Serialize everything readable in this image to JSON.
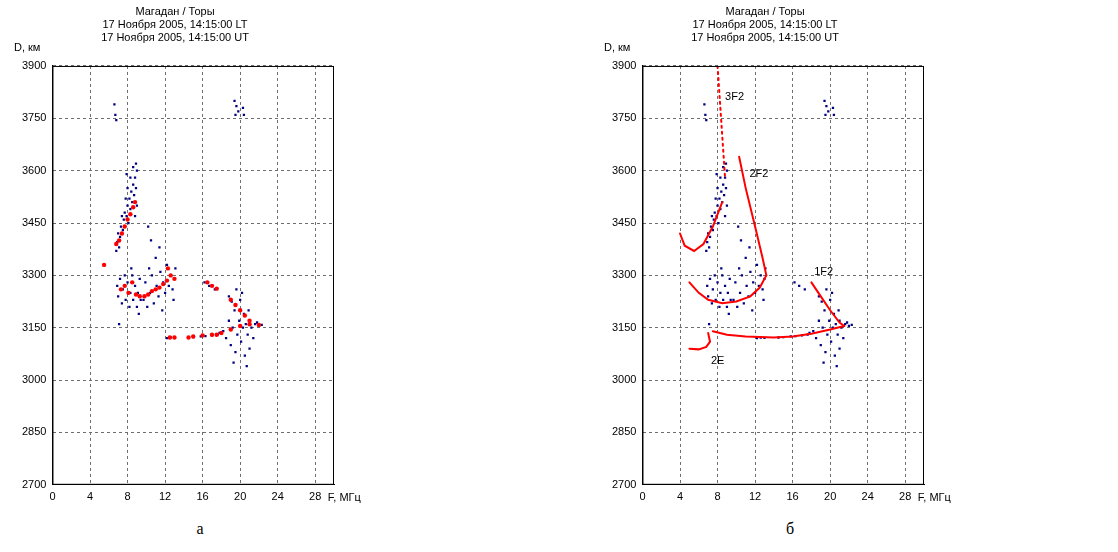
{
  "chart_data": [
    {
      "type": "scatter",
      "title": [
        "Магадан / Торы",
        "17 Ноября 2005, 14:15:00 LT",
        "17 Ноября 2005, 14:15:00 UT"
      ],
      "x_label": "F, МГц",
      "y_label": "D, км",
      "panel_label": "а",
      "xlim": [
        0,
        30
      ],
      "xticks": [
        0,
        4,
        8,
        12,
        16,
        20,
        24,
        28
      ],
      "ylim": [
        2700,
        3900
      ],
      "yticks": [
        2700,
        2850,
        3000,
        3150,
        3300,
        3450,
        3600,
        3750,
        3900
      ],
      "grid": true,
      "series": [
        {
          "type": "scatter",
          "color": "#000080",
          "marker": "square",
          "x": [
            6.9,
            7.0,
            7.2,
            7.3,
            7.5,
            7.6,
            7.7,
            7.9,
            8.0,
            8.1,
            8.2,
            8.3,
            8.4,
            8.5,
            8.6,
            8.7,
            8.8,
            8.9,
            9.0,
            8.6,
            8.3,
            8.0,
            7.8,
            7.4,
            7.1,
            6.8,
            9.0,
            8.8,
            8.9,
            7.9,
            6.6,
            6.7,
            6.8,
            19.4,
            19.6,
            19.8,
            20.3,
            20.4,
            19.5
          ],
          "values": [
            3395,
            3420,
            3410,
            3440,
            3430,
            3460,
            3480,
            3470,
            3500,
            3450,
            3520,
            3490,
            3540,
            3510,
            3560,
            3530,
            3580,
            3550,
            3600,
            3610,
            3580,
            3550,
            3520,
            3470,
            3380,
            3370,
            3500,
            3470,
            3620,
            3590,
            3790,
            3760,
            3745,
            3800,
            3785,
            3770,
            3780,
            3760,
            3760
          ]
        },
        {
          "type": "scatter",
          "color": "#000080",
          "marker": "square",
          "x": [
            6.9,
            7.0,
            7.2,
            7.4,
            7.5,
            7.7,
            7.8,
            8.0,
            8.2,
            8.3,
            8.5,
            8.6,
            8.8,
            9.0,
            9.1,
            9.3,
            9.4,
            7.1,
            8.4,
            9.2,
            9.7,
            9.9,
            10.1,
            10.3,
            10.4,
            10.6,
            10.8,
            11.0,
            11.1,
            11.3,
            11.5,
            11.7,
            11.8,
            12.0,
            12.2,
            12.4,
            12.6,
            12.8,
            13.0,
            13.1,
            11.4,
            10.2,
            10.5,
            12.9
          ],
          "values": [
            3270,
            3240,
            3290,
            3220,
            3260,
            3300,
            3230,
            3280,
            3210,
            3250,
            3300,
            3230,
            3270,
            3210,
            3250,
            3290,
            3230,
            3160,
            3320,
            3190,
            3230,
            3280,
            3210,
            3320,
            3250,
            3300,
            3220,
            3350,
            3270,
            3240,
            3310,
            3200,
            3280,
            3250,
            3330,
            3270,
            3300,
            3260,
            3290,
            3320,
            3380,
            3440,
            3400,
            3230
          ]
        },
        {
          "type": "scatter",
          "color": "#000080",
          "marker": "square",
          "x": [
            12.2,
            12.6,
            13.0,
            14.5,
            15.0,
            15.8,
            16.3,
            17.0,
            17.6,
            17.8,
            18.2,
            18.5,
            18.8,
            19.0,
            19.2,
            19.4,
            19.5,
            19.7,
            19.9,
            20.0,
            20.1,
            20.3,
            20.4,
            20.5,
            20.6,
            20.8,
            20.9,
            21.0,
            21.2,
            21.4,
            21.6,
            21.8,
            22.0,
            22.3,
            19.6,
            20.2,
            21.0,
            19.3,
            20.7,
            16.2,
            16.7,
            17.3,
            18.8,
            19.1
          ],
          "values": [
            3120,
            3122,
            3121,
            3122,
            3123,
            3125,
            3126,
            3128,
            3130,
            3135,
            3140,
            3120,
            3170,
            3100,
            3150,
            3200,
            3080,
            3130,
            3170,
            3230,
            3110,
            3150,
            3190,
            3070,
            3160,
            3130,
            3200,
            3170,
            3150,
            3120,
            3160,
            3165,
            3155,
            3158,
            3260,
            3250,
            3090,
            3050,
            3040,
            3280,
            3270,
            3260,
            3240,
            3225
          ]
        },
        {
          "type": "scatter",
          "color": "#ff0000",
          "marker": "circle",
          "x": [
            5.5,
            6.8,
            7.1,
            7.4,
            7.7,
            8.0,
            8.3,
            8.6,
            8.8,
            7.3,
            7.7,
            8.1,
            8.5,
            8.9,
            9.3,
            9.8,
            10.2,
            10.6,
            11.0,
            11.4,
            11.8,
            12.2,
            12.6,
            13.0,
            12.3,
            12.5,
            13.0,
            14.5,
            15.0,
            16.0,
            17.0,
            17.5,
            18.0,
            19.0,
            20.0,
            21.0,
            22.0,
            16.5,
            17.0,
            17.5,
            19.0,
            19.5,
            20.0,
            20.5,
            21.0
          ],
          "values": [
            3330,
            3390,
            3400,
            3420,
            3440,
            3460,
            3475,
            3495,
            3510,
            3260,
            3270,
            3250,
            3280,
            3245,
            3240,
            3240,
            3245,
            3255,
            3260,
            3265,
            3275,
            3285,
            3300,
            3290,
            3320,
            3122,
            3122,
            3122,
            3125,
            3128,
            3130,
            3130,
            3135,
            3145,
            3155,
            3160,
            3158,
            3280,
            3270,
            3262,
            3230,
            3215,
            3200,
            3185,
            3170
          ]
        }
      ]
    },
    {
      "type": "scatter",
      "title": [
        "Магадан / Торы",
        "17 Ноября 2005, 14:15:00 LT",
        "17 Ноября 2005, 14:15:00 UT"
      ],
      "x_label": "F, МГц",
      "y_label": "D, км",
      "panel_label": "б",
      "xlim": [
        0,
        30
      ],
      "xticks": [
        0,
        4,
        8,
        12,
        16,
        20,
        24,
        28
      ],
      "ylim": [
        2700,
        3900
      ],
      "yticks": [
        2700,
        2850,
        3000,
        3150,
        3300,
        3450,
        3600,
        3750,
        3900
      ],
      "grid": true,
      "series": [
        {
          "type": "scatter",
          "color": "#000080",
          "marker": "square",
          "x": [
            6.9,
            7.0,
            7.2,
            7.3,
            7.5,
            7.6,
            7.7,
            7.9,
            8.0,
            8.1,
            8.2,
            8.3,
            8.4,
            8.5,
            8.6,
            8.7,
            8.8,
            8.9,
            9.0,
            8.6,
            8.3,
            8.0,
            7.8,
            7.4,
            7.1,
            6.8,
            9.0,
            8.8,
            8.9,
            7.9,
            6.6,
            6.7,
            6.8,
            19.4,
            19.6,
            19.8,
            20.3,
            20.4,
            19.5
          ],
          "values": [
            3395,
            3420,
            3410,
            3440,
            3430,
            3460,
            3480,
            3470,
            3500,
            3450,
            3520,
            3490,
            3540,
            3510,
            3560,
            3530,
            3580,
            3550,
            3600,
            3610,
            3580,
            3550,
            3520,
            3470,
            3380,
            3370,
            3500,
            3470,
            3620,
            3590,
            3790,
            3760,
            3745,
            3800,
            3785,
            3770,
            3780,
            3760,
            3760
          ]
        },
        {
          "type": "scatter",
          "color": "#000080",
          "marker": "square",
          "x": [
            6.9,
            7.0,
            7.2,
            7.4,
            7.5,
            7.7,
            7.8,
            8.0,
            8.2,
            8.3,
            8.5,
            8.6,
            8.8,
            9.0,
            9.1,
            9.3,
            9.4,
            7.1,
            8.4,
            9.2,
            9.7,
            9.9,
            10.1,
            10.3,
            10.4,
            10.6,
            10.8,
            11.0,
            11.1,
            11.3,
            11.5,
            11.7,
            11.8,
            12.0,
            12.2,
            12.4,
            12.6,
            12.8,
            13.0,
            13.1,
            11.4,
            10.2,
            10.5,
            12.9
          ],
          "values": [
            3270,
            3240,
            3290,
            3220,
            3260,
            3300,
            3230,
            3280,
            3210,
            3250,
            3300,
            3230,
            3270,
            3210,
            3250,
            3290,
            3230,
            3160,
            3320,
            3190,
            3230,
            3280,
            3210,
            3320,
            3250,
            3300,
            3220,
            3350,
            3270,
            3240,
            3310,
            3200,
            3280,
            3250,
            3330,
            3270,
            3300,
            3260,
            3290,
            3320,
            3380,
            3440,
            3400,
            3230
          ]
        },
        {
          "type": "scatter",
          "color": "#000080",
          "marker": "square",
          "x": [
            12.2,
            12.6,
            13.0,
            14.5,
            15.0,
            15.8,
            16.3,
            17.0,
            17.6,
            17.8,
            18.2,
            18.5,
            18.8,
            19.0,
            19.2,
            19.4,
            19.5,
            19.7,
            19.9,
            20.0,
            20.1,
            20.3,
            20.4,
            20.5,
            20.6,
            20.8,
            20.9,
            21.0,
            21.2,
            21.4,
            21.6,
            21.8,
            22.0,
            22.3,
            19.6,
            20.2,
            21.0,
            19.3,
            20.7,
            16.2,
            16.7,
            17.3,
            18.8,
            19.1
          ],
          "values": [
            3120,
            3122,
            3121,
            3122,
            3123,
            3125,
            3126,
            3128,
            3130,
            3135,
            3140,
            3120,
            3170,
            3100,
            3150,
            3200,
            3080,
            3130,
            3170,
            3230,
            3110,
            3150,
            3190,
            3070,
            3160,
            3130,
            3200,
            3170,
            3150,
            3120,
            3160,
            3165,
            3155,
            3158,
            3260,
            3250,
            3090,
            3050,
            3040,
            3280,
            3270,
            3260,
            3240,
            3225
          ]
        },
        {
          "type": "line",
          "color": "#ff0000",
          "line_style": "dotted",
          "x": [
            8.0,
            8.2,
            8.4,
            8.6,
            8.8
          ],
          "values": [
            3900,
            3820,
            3740,
            3660,
            3580
          ]
        },
        {
          "type": "line",
          "color": "#ff0000",
          "line_style": "solid",
          "x": [
            4.0,
            4.5,
            5.5,
            6.5,
            7.5,
            8.5
          ],
          "values": [
            3420,
            3385,
            3370,
            3390,
            3440,
            3510
          ]
        },
        {
          "type": "line",
          "color": "#ff0000",
          "line_style": "solid",
          "x": [
            10.3,
            11.0,
            12.0,
            12.8,
            13.2
          ],
          "values": [
            3640,
            3550,
            3440,
            3350,
            3300
          ]
        },
        {
          "type": "line",
          "color": "#ff0000",
          "line_style": "solid",
          "x": [
            5.0,
            6.0,
            7.0,
            8.5,
            10.0,
            11.5,
            12.5,
            13.2
          ],
          "values": [
            3280,
            3250,
            3230,
            3220,
            3225,
            3240,
            3265,
            3300
          ]
        },
        {
          "type": "line",
          "color": "#ff0000",
          "line_style": "solid",
          "x": [
            7.5,
            9.0,
            11.0,
            14.0,
            16.0,
            18.0,
            20.0,
            21.5
          ],
          "values": [
            3140,
            3130,
            3125,
            3122,
            3125,
            3133,
            3145,
            3155
          ]
        },
        {
          "type": "line",
          "color": "#ff0000",
          "line_style": "solid",
          "x": [
            18.0,
            19.0,
            20.0,
            21.0,
            21.5
          ],
          "values": [
            3280,
            3240,
            3200,
            3165,
            3155
          ]
        },
        {
          "type": "line",
          "color": "#ff0000",
          "line_style": "solid",
          "x": [
            5.0,
            6.0,
            6.8,
            7.2,
            7.0
          ],
          "values": [
            3090,
            3088,
            3095,
            3110,
            3135
          ]
        }
      ],
      "annotations": [
        {
          "text": "3F2",
          "x": 8.8,
          "y": 3810
        },
        {
          "text": "2F2",
          "x": 11.4,
          "y": 3590
        },
        {
          "text": "1F2",
          "x": 18.3,
          "y": 3310
        },
        {
          "text": "2E",
          "x": 7.3,
          "y": 3055
        }
      ]
    }
  ]
}
